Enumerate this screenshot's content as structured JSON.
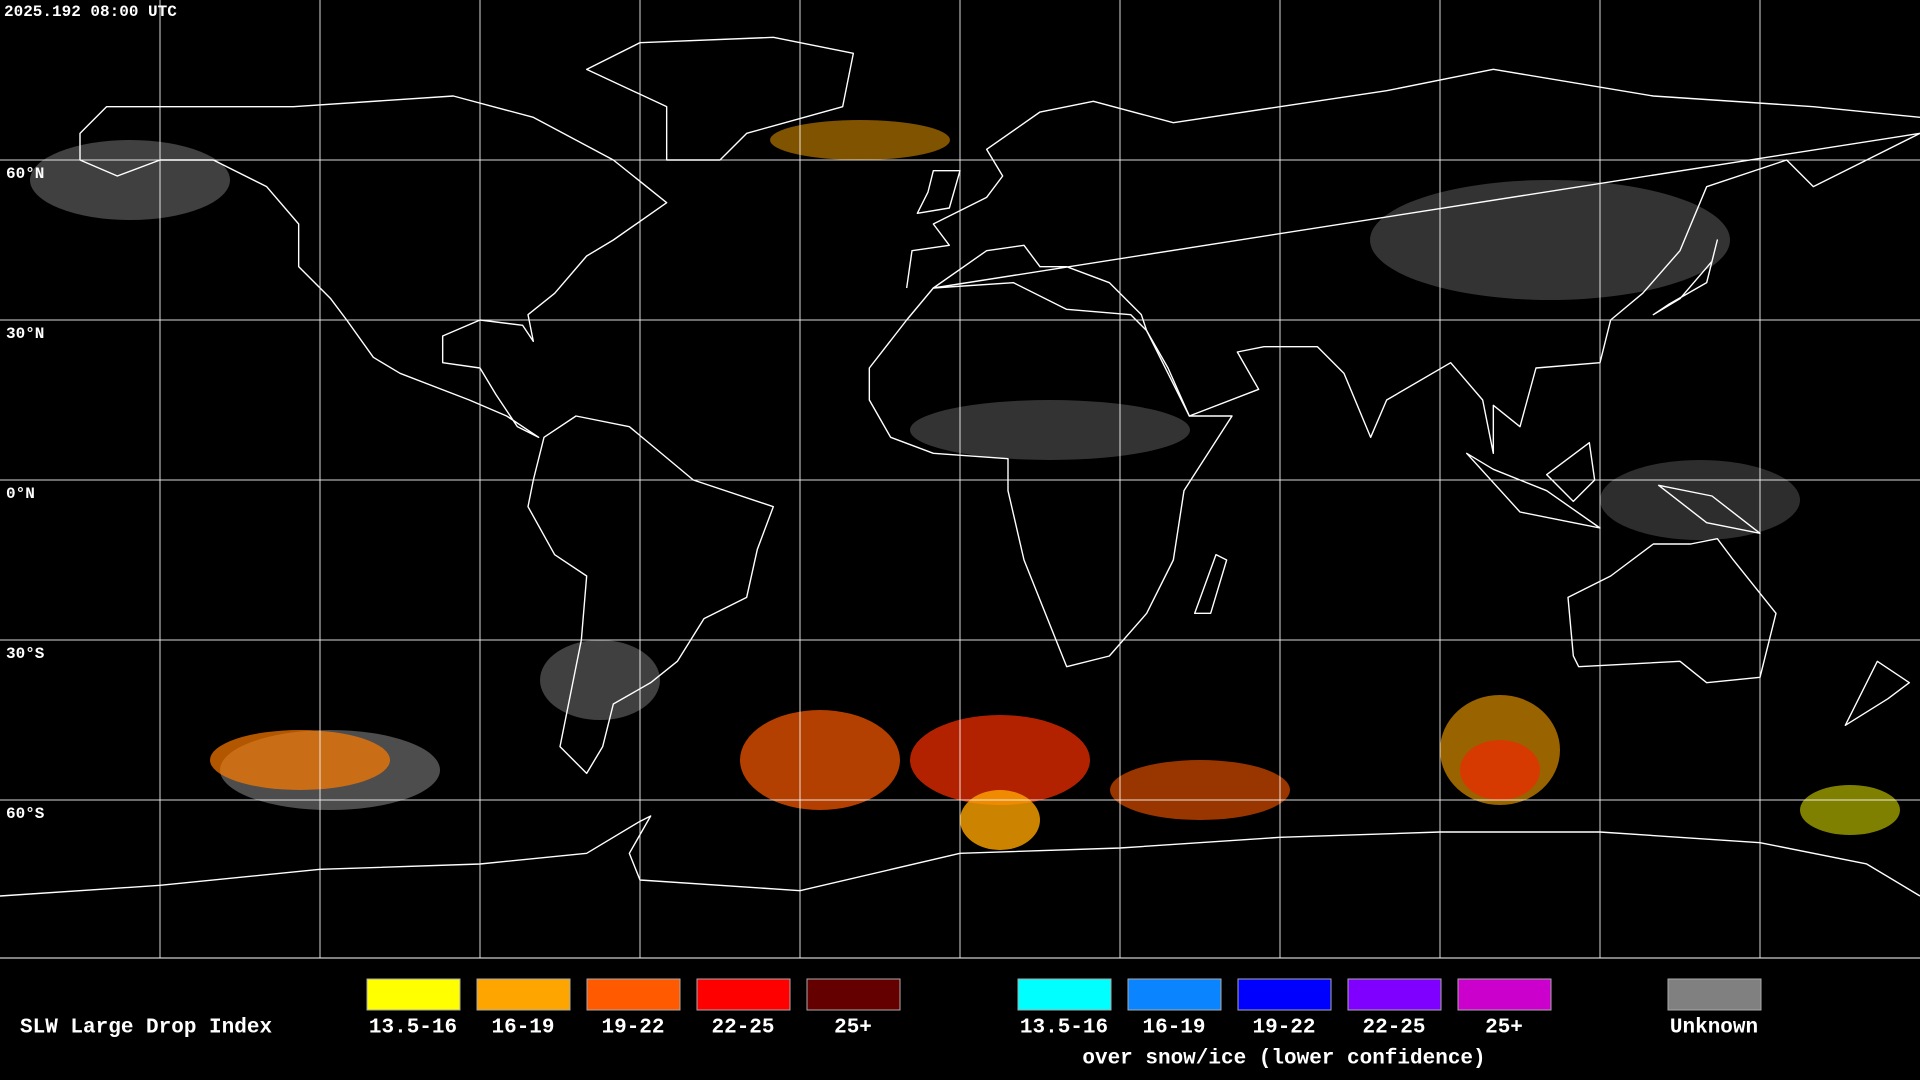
{
  "header": {
    "title": "2025.192 08:00 UTC"
  },
  "map": {
    "latitude_labels": [
      "60°N",
      "30°N",
      "0°N",
      "30°S",
      "60°S"
    ]
  },
  "legend": {
    "title": "SLW Large Drop Index",
    "groups": [
      {
        "items": [
          {
            "label": "13.5-16",
            "color": "#ffff00"
          },
          {
            "label": "16-19",
            "color": "#ffa500"
          },
          {
            "label": "19-22",
            "color": "#ff5a00"
          },
          {
            "label": "22-25",
            "color": "#ff0000"
          },
          {
            "label": "25+",
            "color": "#650000"
          }
        ]
      },
      {
        "items": [
          {
            "label": "13.5-16",
            "color": "#00ffff"
          },
          {
            "label": "16-19",
            "color": "#0a84ff"
          },
          {
            "label": "19-22",
            "color": "#0000ff"
          },
          {
            "label": "22-25",
            "color": "#8000ff"
          },
          {
            "label": "25+",
            "color": "#cc00cc"
          }
        ],
        "caption": "over snow/ice (lower confidence)"
      }
    ],
    "unknown": {
      "label": "Unknown",
      "color": "#808080"
    }
  }
}
